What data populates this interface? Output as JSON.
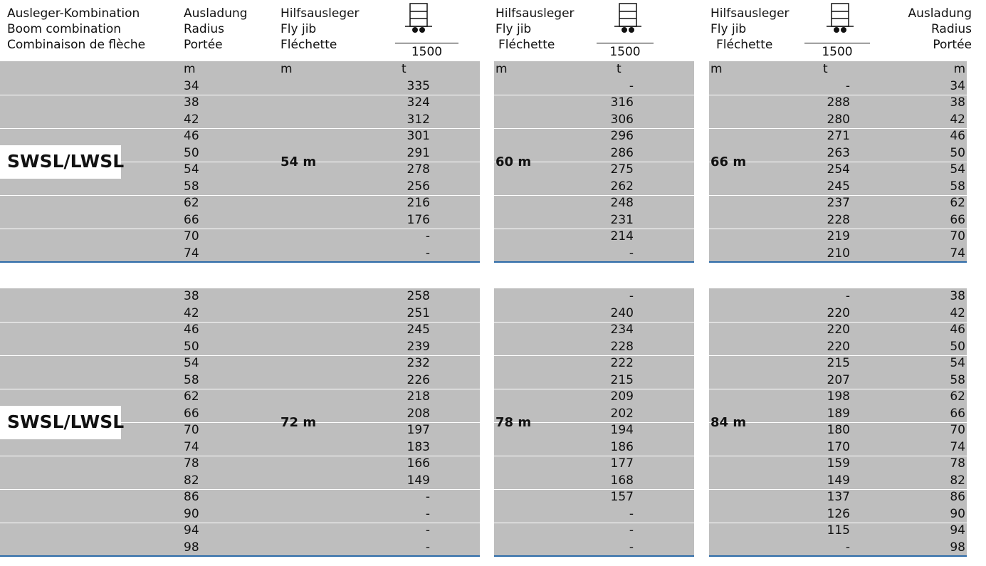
{
  "header": {
    "boom_combination": [
      "Ausleger-Kombination",
      "Boom combination",
      "Combinaison de flèche"
    ],
    "radius": [
      "Ausladung",
      "Radius",
      "Portée"
    ],
    "fly_jib": [
      "Hilfsausleger",
      "Fly jib",
      "Fléchette"
    ],
    "fly_jib_2": [
      "Hilfsausleger",
      "Fly jib",
      "Fléchette"
    ],
    "fly_jib_3": [
      "Hilfsausleger",
      "Fly jib",
      "Fléchette"
    ],
    "radius_right": [
      "Ausladung",
      "Radius",
      "Portée"
    ],
    "counterweight": "1500",
    "icon": "counterweight-trolley-icon"
  },
  "units": {
    "radius": "m",
    "jib": "m",
    "load": "t",
    "jib2": "m",
    "load2": "t",
    "jib3": "m",
    "load3": "t",
    "radius_right": "m"
  },
  "sections": [
    {
      "combination": "SWSL/LWSL",
      "jibs": [
        "54 m",
        "60 m",
        "66 m"
      ],
      "radii": [
        "34",
        "38",
        "42",
        "46",
        "50",
        "54",
        "58",
        "62",
        "66",
        "70",
        "74"
      ],
      "loads_a": [
        "335",
        "324",
        "312",
        "301",
        "291",
        "278",
        "256",
        "216",
        "176",
        "-",
        "-"
      ],
      "loads_b": [
        "-",
        "316",
        "306",
        "296",
        "286",
        "275",
        "262",
        "248",
        "231",
        "214",
        "-"
      ],
      "loads_c": [
        "-",
        "288",
        "280",
        "271",
        "263",
        "254",
        "245",
        "237",
        "228",
        "219",
        "210"
      ]
    },
    {
      "combination": "SWSL/LWSL",
      "jibs": [
        "72 m",
        "78 m",
        "84 m"
      ],
      "radii": [
        "38",
        "42",
        "46",
        "50",
        "54",
        "58",
        "62",
        "66",
        "70",
        "74",
        "78",
        "82",
        "86",
        "90",
        "94",
        "98"
      ],
      "loads_a": [
        "258",
        "251",
        "245",
        "239",
        "232",
        "226",
        "218",
        "208",
        "197",
        "183",
        "166",
        "149",
        "-",
        "-",
        "-",
        "-"
      ],
      "loads_b": [
        "-",
        "240",
        "234",
        "228",
        "222",
        "215",
        "209",
        "202",
        "194",
        "186",
        "177",
        "168",
        "157",
        "-",
        "-",
        "-"
      ],
      "loads_c": [
        "-",
        "220",
        "220",
        "220",
        "215",
        "207",
        "198",
        "189",
        "180",
        "170",
        "159",
        "149",
        "137",
        "126",
        "115",
        "-"
      ]
    }
  ]
}
